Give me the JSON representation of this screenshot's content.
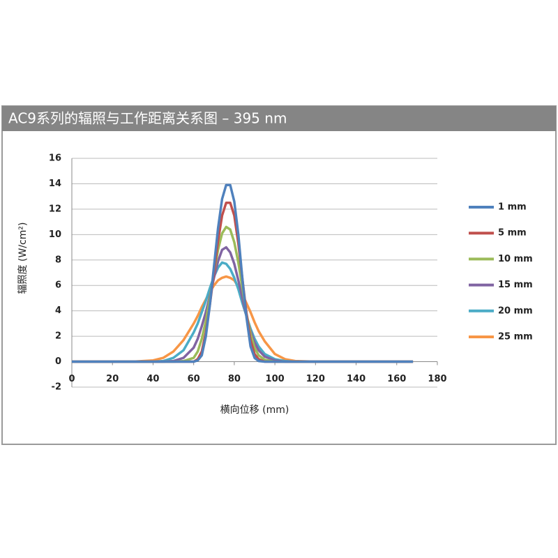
{
  "chart_data": {
    "type": "line",
    "title": "AC9系列的辐照与工作距离关系图 – 395 nm",
    "x_label": "横向位移 (mm)",
    "y_label": "辐照度 (W/cm²)",
    "x": [
      0,
      10,
      20,
      30,
      40,
      45,
      50,
      55,
      60,
      62,
      64,
      66,
      68,
      70,
      72,
      74,
      76,
      78,
      80,
      82,
      84,
      86,
      88,
      90,
      92,
      95,
      100,
      105,
      110,
      120,
      130,
      140,
      150,
      160,
      168
    ],
    "series": [
      {
        "name": "1 mm",
        "color": "#4f81bd",
        "values": [
          0,
          0,
          0,
          0,
          0,
          0,
          0,
          0,
          0,
          0.1,
          0.5,
          2,
          4.5,
          7.5,
          10.5,
          12.8,
          13.9,
          13.9,
          12.6,
          10,
          6.5,
          3.5,
          1.2,
          0.3,
          0.05,
          0,
          0,
          0,
          0,
          0,
          0,
          0,
          0,
          0,
          0
        ]
      },
      {
        "name": "5 mm",
        "color": "#c0504d",
        "values": [
          0,
          0,
          0,
          0,
          0,
          0,
          0,
          0,
          0,
          0.2,
          0.8,
          2.3,
          4.5,
          7,
          9.5,
          11.5,
          12.5,
          12.5,
          11.5,
          9.3,
          6.5,
          3.8,
          1.7,
          0.6,
          0.2,
          0,
          0,
          0,
          0,
          0,
          0,
          0,
          0,
          0,
          0
        ]
      },
      {
        "name": "10 mm",
        "color": "#9bbb59",
        "values": [
          0,
          0,
          0,
          0,
          0,
          0,
          0,
          0.05,
          0.3,
          0.8,
          1.8,
          3.2,
          5,
          7,
          8.8,
          10.1,
          10.6,
          10.4,
          9.4,
          7.8,
          5.8,
          3.8,
          2.2,
          1.1,
          0.5,
          0.15,
          0,
          0,
          0,
          0,
          0,
          0,
          0,
          0,
          0
        ]
      },
      {
        "name": "15 mm",
        "color": "#8064a2",
        "values": [
          0,
          0,
          0,
          0,
          0,
          0,
          0.05,
          0.3,
          1.1,
          1.8,
          2.8,
          3.9,
          5.2,
          6.6,
          7.9,
          8.8,
          9.0,
          8.6,
          7.7,
          6.4,
          5,
          3.6,
          2.4,
          1.5,
          0.9,
          0.4,
          0.1,
          0,
          0,
          0,
          0,
          0,
          0,
          0,
          0
        ]
      },
      {
        "name": "20 mm",
        "color": "#4bacc6",
        "values": [
          0,
          0,
          0,
          0,
          0,
          0.05,
          0.3,
          0.9,
          2.3,
          3,
          3.9,
          4.8,
          5.8,
          6.7,
          7.4,
          7.8,
          7.7,
          7.3,
          6.6,
          5.7,
          4.6,
          3.6,
          2.6,
          1.8,
          1.2,
          0.6,
          0.2,
          0.05,
          0,
          0,
          0,
          0,
          0,
          0,
          0
        ]
      },
      {
        "name": "25 mm",
        "color": "#f79646",
        "values": [
          0,
          0,
          0,
          0,
          0.1,
          0.3,
          0.8,
          1.7,
          3,
          3.6,
          4.3,
          4.9,
          5.5,
          6,
          6.4,
          6.6,
          6.7,
          6.6,
          6.4,
          5.9,
          5.3,
          4.6,
          3.9,
          3.1,
          2.4,
          1.6,
          0.6,
          0.2,
          0.05,
          0,
          0,
          0,
          0,
          0,
          0
        ]
      }
    ],
    "xlim": [
      0,
      180
    ],
    "xticks": [
      0,
      20,
      40,
      60,
      80,
      100,
      120,
      140,
      160,
      180
    ],
    "ylim": [
      -2,
      16
    ],
    "yticks": [
      -2,
      0,
      2,
      4,
      6,
      8,
      10,
      12,
      14,
      16
    ],
    "grid": true,
    "legend": "right"
  }
}
